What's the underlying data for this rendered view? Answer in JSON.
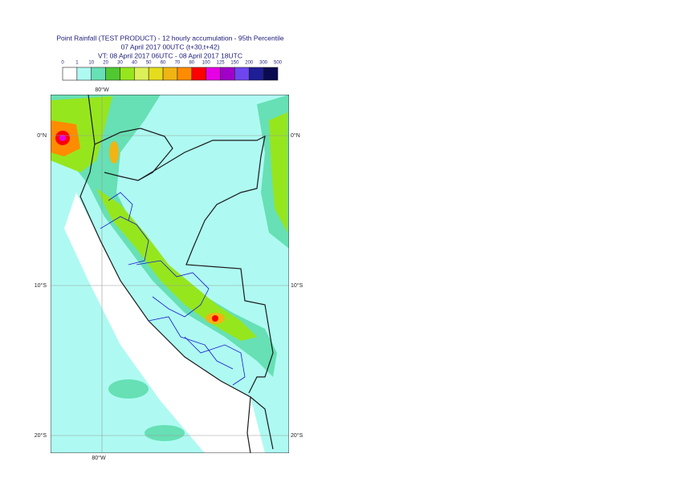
{
  "header": {
    "title": "Point Rainfall (TEST PRODUCT) - 12 hourly accumulation - 95th Percentile",
    "base_time": "07 April 2017 00UTC (t+30,t+42)",
    "valid_time": "VT: 08 April 2017 06UTC - 08 April 2017 18UTC"
  },
  "legend": {
    "ticks": [
      0,
      1,
      10,
      20,
      30,
      40,
      50,
      60,
      70,
      80,
      100,
      125,
      150,
      200,
      300,
      500
    ],
    "colors": [
      "#ffffff",
      "#aefaf2",
      "#66e0b4",
      "#50c832",
      "#96e61e",
      "#dcf05a",
      "#e6dc1e",
      "#f0b414",
      "#ff8c00",
      "#ff0000",
      "#e600e6",
      "#a000c8",
      "#6e46f0",
      "#1e1e96",
      "#0a0a50"
    ]
  },
  "map": {
    "lon_labels": [
      "80°W"
    ],
    "lat_labels": [
      "0°N",
      "10°S",
      "20°S"
    ]
  }
}
